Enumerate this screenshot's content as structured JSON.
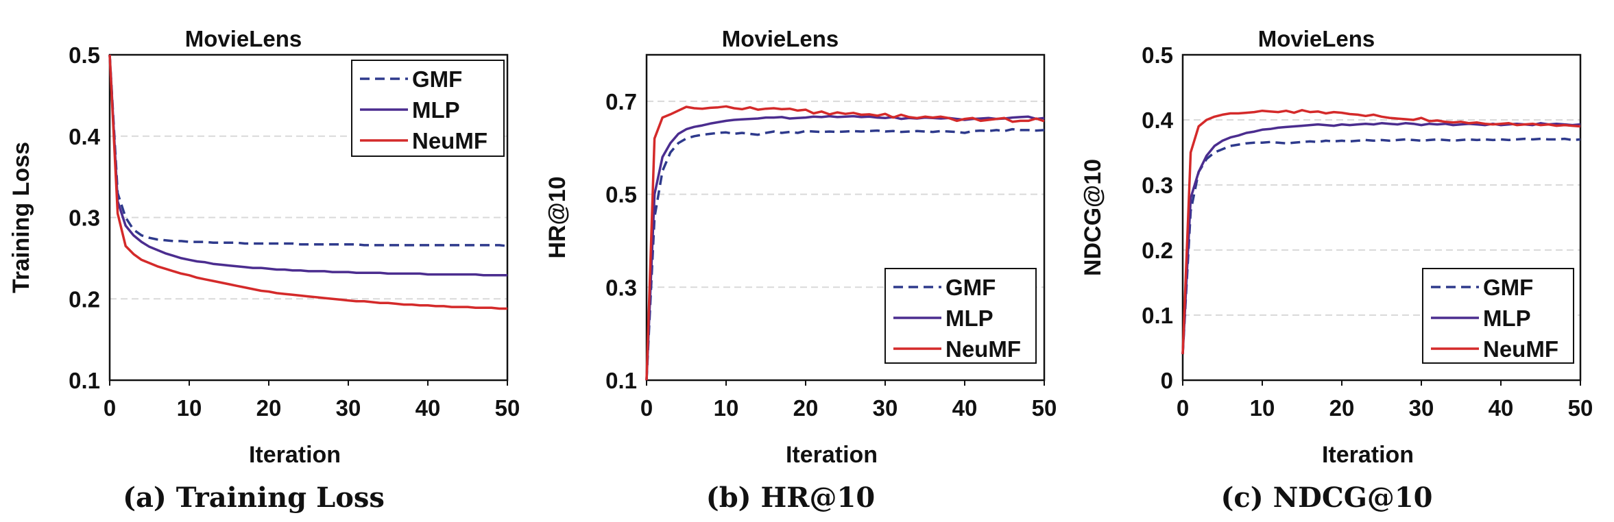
{
  "colors": {
    "GMF": "#2e3a8c",
    "MLP": "#4b2d8f",
    "NeuMF": "#d42a2a",
    "grid": "#d9d9d9"
  },
  "chart_data": [
    {
      "type": "line",
      "title": "MovieLens",
      "caption": "(a) Training Loss",
      "xlabel": "Iteration",
      "ylabel": "Training Loss",
      "xlim": [
        0,
        50
      ],
      "ylim": [
        0.1,
        0.5
      ],
      "xticks": [
        "0",
        "10",
        "20",
        "30",
        "40",
        "50"
      ],
      "yticks": [
        "0.1",
        "0.2",
        "0.3",
        "0.4",
        "0.5"
      ],
      "grid": "horizontal dashed",
      "legend_position": "top-right",
      "x": [
        0,
        1,
        2,
        3,
        4,
        5,
        6,
        7,
        8,
        9,
        10,
        11,
        12,
        13,
        14,
        15,
        16,
        17,
        18,
        19,
        20,
        21,
        22,
        23,
        24,
        25,
        26,
        27,
        28,
        29,
        30,
        31,
        32,
        33,
        34,
        35,
        36,
        37,
        38,
        39,
        40,
        41,
        42,
        43,
        44,
        45,
        46,
        47,
        48,
        49,
        50
      ],
      "series": [
        {
          "name": "GMF",
          "style": "dashed",
          "values": [
            0.5,
            0.33,
            0.3,
            0.285,
            0.278,
            0.275,
            0.273,
            0.272,
            0.271,
            0.271,
            0.27,
            0.27,
            0.27,
            0.269,
            0.269,
            0.269,
            0.269,
            0.268,
            0.268,
            0.268,
            0.268,
            0.268,
            0.268,
            0.268,
            0.267,
            0.267,
            0.267,
            0.267,
            0.267,
            0.267,
            0.267,
            0.267,
            0.266,
            0.266,
            0.266,
            0.266,
            0.266,
            0.266,
            0.266,
            0.266,
            0.266,
            0.266,
            0.266,
            0.266,
            0.266,
            0.266,
            0.266,
            0.266,
            0.266,
            0.266,
            0.265
          ]
        },
        {
          "name": "MLP",
          "style": "solid",
          "values": [
            0.5,
            0.32,
            0.29,
            0.278,
            0.27,
            0.264,
            0.26,
            0.256,
            0.253,
            0.25,
            0.248,
            0.246,
            0.245,
            0.243,
            0.242,
            0.241,
            0.24,
            0.239,
            0.238,
            0.238,
            0.237,
            0.236,
            0.236,
            0.235,
            0.235,
            0.234,
            0.234,
            0.234,
            0.233,
            0.233,
            0.233,
            0.232,
            0.232,
            0.232,
            0.232,
            0.231,
            0.231,
            0.231,
            0.231,
            0.231,
            0.23,
            0.23,
            0.23,
            0.23,
            0.23,
            0.23,
            0.23,
            0.229,
            0.229,
            0.229,
            0.229
          ]
        },
        {
          "name": "NeuMF",
          "style": "solid",
          "values": [
            0.5,
            0.305,
            0.265,
            0.255,
            0.248,
            0.244,
            0.24,
            0.237,
            0.234,
            0.231,
            0.229,
            0.226,
            0.224,
            0.222,
            0.22,
            0.218,
            0.216,
            0.214,
            0.212,
            0.21,
            0.209,
            0.207,
            0.206,
            0.205,
            0.204,
            0.203,
            0.202,
            0.201,
            0.2,
            0.199,
            0.198,
            0.197,
            0.197,
            0.196,
            0.195,
            0.195,
            0.194,
            0.193,
            0.193,
            0.192,
            0.192,
            0.191,
            0.191,
            0.19,
            0.19,
            0.19,
            0.189,
            0.189,
            0.189,
            0.188,
            0.188
          ]
        }
      ]
    },
    {
      "type": "line",
      "title": "MovieLens",
      "caption": "(b) HR@10",
      "xlabel": "Iteration",
      "ylabel": "HR@10",
      "xlim": [
        0,
        50
      ],
      "ylim": [
        0.1,
        0.8
      ],
      "xticks": [
        "0",
        "10",
        "20",
        "30",
        "40",
        "50"
      ],
      "yticks": [
        "0.1",
        "0.3",
        "0.5",
        "0.7"
      ],
      "grid": "horizontal dashed",
      "legend_position": "bottom-right",
      "x": [
        0,
        1,
        2,
        3,
        4,
        5,
        6,
        7,
        8,
        9,
        10,
        11,
        12,
        13,
        14,
        15,
        16,
        17,
        18,
        19,
        20,
        21,
        22,
        23,
        24,
        25,
        26,
        27,
        28,
        29,
        30,
        31,
        32,
        33,
        34,
        35,
        36,
        37,
        38,
        39,
        40,
        41,
        42,
        43,
        44,
        45,
        46,
        47,
        48,
        49,
        50
      ],
      "series": [
        {
          "name": "GMF",
          "style": "dashed",
          "values": [
            0.1,
            0.45,
            0.55,
            0.59,
            0.61,
            0.62,
            0.625,
            0.628,
            0.63,
            0.632,
            0.633,
            0.63,
            0.632,
            0.63,
            0.628,
            0.632,
            0.635,
            0.632,
            0.634,
            0.632,
            0.636,
            0.635,
            0.634,
            0.635,
            0.634,
            0.635,
            0.636,
            0.635,
            0.636,
            0.637,
            0.635,
            0.636,
            0.634,
            0.635,
            0.636,
            0.635,
            0.634,
            0.636,
            0.635,
            0.634,
            0.632,
            0.636,
            0.637,
            0.636,
            0.638,
            0.636,
            0.64,
            0.638,
            0.638,
            0.637,
            0.638
          ]
        },
        {
          "name": "MLP",
          "style": "solid",
          "values": [
            0.1,
            0.5,
            0.58,
            0.61,
            0.63,
            0.64,
            0.645,
            0.648,
            0.652,
            0.655,
            0.658,
            0.66,
            0.661,
            0.662,
            0.663,
            0.665,
            0.665,
            0.666,
            0.663,
            0.664,
            0.665,
            0.667,
            0.666,
            0.668,
            0.666,
            0.667,
            0.668,
            0.666,
            0.667,
            0.665,
            0.664,
            0.666,
            0.662,
            0.664,
            0.663,
            0.665,
            0.664,
            0.663,
            0.664,
            0.662,
            0.66,
            0.662,
            0.663,
            0.664,
            0.662,
            0.663,
            0.665,
            0.666,
            0.667,
            0.662,
            0.664
          ]
        },
        {
          "name": "NeuMF",
          "style": "solid",
          "values": [
            0.1,
            0.62,
            0.665,
            0.672,
            0.68,
            0.688,
            0.685,
            0.684,
            0.686,
            0.687,
            0.689,
            0.685,
            0.683,
            0.687,
            0.682,
            0.684,
            0.685,
            0.683,
            0.684,
            0.68,
            0.682,
            0.674,
            0.678,
            0.672,
            0.676,
            0.673,
            0.675,
            0.671,
            0.672,
            0.669,
            0.673,
            0.665,
            0.671,
            0.666,
            0.664,
            0.667,
            0.665,
            0.667,
            0.664,
            0.658,
            0.662,
            0.664,
            0.658,
            0.66,
            0.662,
            0.664,
            0.656,
            0.658,
            0.658,
            0.663,
            0.657
          ]
        }
      ]
    },
    {
      "type": "line",
      "title": "MovieLens",
      "caption": "(c) NDCG@10",
      "xlabel": "Iteration",
      "ylabel": "NDCG@10",
      "xlim": [
        0,
        50
      ],
      "ylim": [
        0,
        0.5
      ],
      "xticks": [
        "0",
        "10",
        "20",
        "30",
        "40",
        "50"
      ],
      "yticks": [
        "0",
        "0.1",
        "0.2",
        "0.3",
        "0.4",
        "0.5"
      ],
      "grid": "horizontal dashed",
      "legend_position": "bottom-right",
      "x": [
        0,
        1,
        2,
        3,
        4,
        5,
        6,
        7,
        8,
        9,
        10,
        11,
        12,
        13,
        14,
        15,
        16,
        17,
        18,
        19,
        20,
        21,
        22,
        23,
        24,
        25,
        26,
        27,
        28,
        29,
        30,
        31,
        32,
        33,
        34,
        35,
        36,
        37,
        38,
        39,
        40,
        41,
        42,
        43,
        44,
        45,
        46,
        47,
        48,
        49,
        50
      ],
      "series": [
        {
          "name": "GMF",
          "style": "dashed",
          "values": [
            0.04,
            0.26,
            0.32,
            0.34,
            0.35,
            0.355,
            0.36,
            0.362,
            0.364,
            0.365,
            0.365,
            0.366,
            0.365,
            0.364,
            0.365,
            0.366,
            0.367,
            0.366,
            0.368,
            0.367,
            0.368,
            0.367,
            0.368,
            0.369,
            0.368,
            0.369,
            0.368,
            0.369,
            0.37,
            0.369,
            0.368,
            0.369,
            0.37,
            0.369,
            0.368,
            0.369,
            0.37,
            0.369,
            0.37,
            0.369,
            0.37,
            0.369,
            0.37,
            0.371,
            0.37,
            0.371,
            0.37,
            0.37,
            0.371,
            0.369,
            0.37
          ]
        },
        {
          "name": "MLP",
          "style": "solid",
          "values": [
            0.04,
            0.28,
            0.32,
            0.345,
            0.36,
            0.368,
            0.373,
            0.376,
            0.38,
            0.382,
            0.385,
            0.386,
            0.388,
            0.389,
            0.39,
            0.391,
            0.392,
            0.393,
            0.392,
            0.391,
            0.393,
            0.392,
            0.393,
            0.394,
            0.393,
            0.395,
            0.394,
            0.393,
            0.395,
            0.394,
            0.392,
            0.394,
            0.393,
            0.394,
            0.392,
            0.393,
            0.394,
            0.393,
            0.392,
            0.394,
            0.392,
            0.393,
            0.394,
            0.393,
            0.392,
            0.395,
            0.393,
            0.394,
            0.393,
            0.392,
            0.393
          ]
        },
        {
          "name": "NeuMF",
          "style": "solid",
          "values": [
            0.04,
            0.35,
            0.39,
            0.4,
            0.405,
            0.408,
            0.41,
            0.41,
            0.411,
            0.412,
            0.414,
            0.413,
            0.412,
            0.414,
            0.411,
            0.415,
            0.412,
            0.413,
            0.41,
            0.412,
            0.411,
            0.409,
            0.408,
            0.406,
            0.408,
            0.405,
            0.403,
            0.402,
            0.401,
            0.4,
            0.403,
            0.398,
            0.399,
            0.397,
            0.396,
            0.397,
            0.395,
            0.396,
            0.394,
            0.393,
            0.394,
            0.395,
            0.392,
            0.393,
            0.394,
            0.392,
            0.393,
            0.391,
            0.392,
            0.391,
            0.39
          ]
        }
      ]
    }
  ]
}
